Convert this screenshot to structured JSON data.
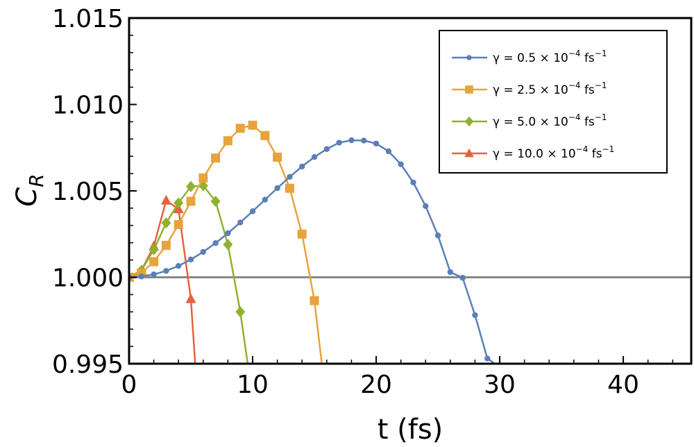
{
  "chart_data": {
    "type": "line",
    "xlabel": "t (fs)",
    "ylabel": "C",
    "ylabel_subscript": "R",
    "xlim": [
      0,
      45.5
    ],
    "ylim": [
      0.995,
      1.015
    ],
    "x_ticks": [
      "0",
      "10",
      "20",
      "30",
      "40"
    ],
    "y_ticks": [
      "0.995",
      "1.000",
      "1.005",
      "1.010",
      "1.015"
    ],
    "reference_line": {
      "y": 1.0,
      "color": "#888888"
    },
    "legend_position": "top-right",
    "series": [
      {
        "name": "γ = 0.5 × 10",
        "exponent": "−4",
        "unit": "fs",
        "unit_exp": "−1",
        "color": "#5b7fb6",
        "marker": "circle",
        "x": [
          0,
          1,
          2,
          3,
          4,
          5,
          6,
          7,
          8,
          9,
          10,
          11,
          12,
          13,
          14,
          15,
          16,
          17,
          18,
          19,
          20,
          21,
          22,
          23,
          24,
          25,
          26,
          27,
          28,
          29,
          29.6
        ],
        "y": [
          1.0,
          1.00005,
          1.00017,
          1.00037,
          1.00066,
          1.00103,
          1.00147,
          1.00198,
          1.00255,
          1.00317,
          1.00382,
          1.00449,
          1.00516,
          1.00581,
          1.00641,
          1.00696,
          1.00742,
          1.00779,
          1.00793,
          1.00791,
          1.00774,
          1.00729,
          1.00654,
          1.00549,
          1.00412,
          1.00242,
          1.0003,
          0.99997,
          0.99781,
          0.9953,
          0.995
        ]
      },
      {
        "name": "γ = 2.5 × 10",
        "exponent": "−4",
        "unit": "fs",
        "unit_exp": "−1",
        "color": "#e8a33d",
        "marker": "square",
        "x": [
          0,
          1,
          2,
          3,
          4,
          5,
          6,
          7,
          8,
          9,
          10,
          11,
          12,
          13,
          14,
          15,
          15.6
        ],
        "y": [
          1.0,
          1.00025,
          1.0009,
          1.00185,
          1.00305,
          1.0044,
          1.00575,
          1.0069,
          1.0079,
          1.00862,
          1.0088,
          1.0082,
          1.00695,
          1.00515,
          1.0025,
          0.99865,
          0.995
        ]
      },
      {
        "name": "γ = 5.0 × 10",
        "exponent": "−4",
        "unit": "fs",
        "unit_exp": "−1",
        "color": "#8fb131",
        "marker": "diamond",
        "x": [
          0,
          1,
          2,
          3,
          4,
          5,
          6,
          7,
          8,
          9,
          9.6
        ],
        "y": [
          1.0,
          1.0004,
          1.0016,
          1.00315,
          1.0043,
          1.00525,
          1.0053,
          1.0044,
          1.0019,
          0.998,
          0.995
        ]
      },
      {
        "name": "γ = 10.0 × 10",
        "exponent": "−4",
        "unit": "fs",
        "unit_exp": "−1",
        "color": "#e5623a",
        "marker": "triangle",
        "x": [
          0,
          1,
          2,
          3,
          4,
          5,
          5.35
        ],
        "y": [
          1.0,
          1.0004,
          1.0018,
          1.00445,
          1.00395,
          0.99875,
          0.995
        ]
      }
    ]
  }
}
